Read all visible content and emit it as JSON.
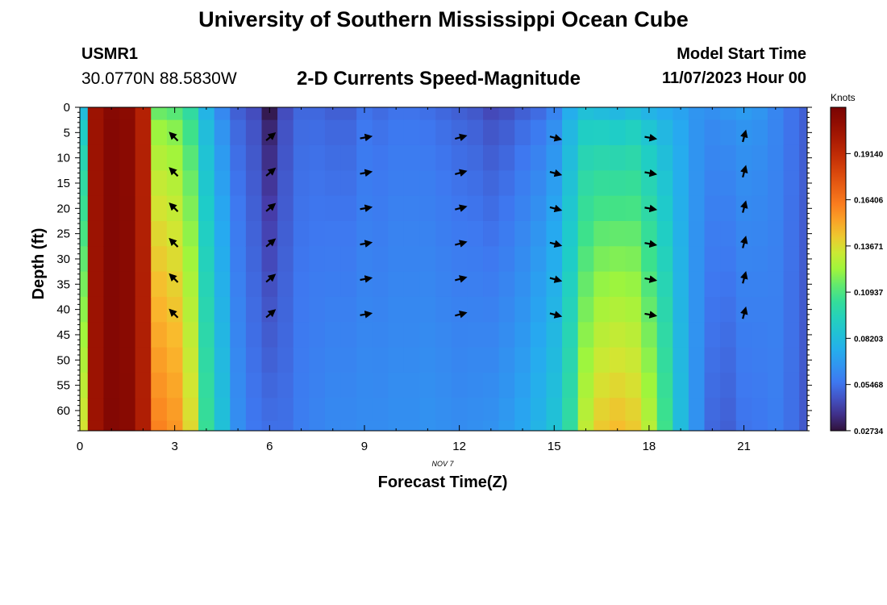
{
  "header": {
    "title": "University of Southern Mississippi Ocean Cube",
    "station_id": "USMR1",
    "coords": "30.0770N  88.5830W",
    "chart_title": "2-D Currents Speed-Magnitude",
    "start_label": "Model Start Time",
    "start_value": "11/07/2023 Hour 00"
  },
  "footer": {
    "title": "University of Southern Mississippi Ocean Cube"
  },
  "chart_data": {
    "type": "heatmap",
    "title": "2-D Currents Speed-Magnitude",
    "xlabel": "Forecast Time(Z)",
    "ylabel": "Depth (ft)",
    "x_sublabel": "NOV 7",
    "xlim": [
      0,
      23
    ],
    "ylim": [
      0,
      64
    ],
    "y_inverted": true,
    "x_ticks": [
      0,
      3,
      6,
      9,
      12,
      15,
      18,
      21
    ],
    "y_ticks": [
      0,
      5,
      10,
      15,
      20,
      25,
      30,
      35,
      40,
      45,
      50,
      55,
      60
    ],
    "colorbar": {
      "label": "Knots",
      "min": 0.0273,
      "max": 0.2188,
      "tick_values": [
        0.02734,
        0.05468,
        0.08203,
        0.10937,
        0.13671,
        0.16406,
        0.1914
      ],
      "tick_labels": [
        "0.02734",
        "0.05468",
        "0.08203",
        "0.10937",
        "0.13671",
        "0.16406",
        "0.19140"
      ]
    },
    "hours": [
      0,
      0.5,
      1,
      1.5,
      2,
      2.5,
      3,
      3.5,
      4,
      4.5,
      5,
      5.5,
      6,
      6.5,
      7,
      7.5,
      8,
      8.5,
      9,
      9.5,
      10,
      10.5,
      11,
      11.5,
      12,
      12.5,
      13,
      13.5,
      14,
      14.5,
      15,
      15.5,
      16,
      16.5,
      17,
      17.5,
      18,
      18.5,
      19,
      19.5,
      20,
      20.5,
      21,
      21.5,
      22,
      22.5,
      23
    ],
    "depths_ft": [
      0,
      5,
      10,
      15,
      20,
      25,
      30,
      35,
      40,
      45,
      50,
      55,
      60,
      64
    ],
    "speed_surface_knots": [
      0.082,
      0.205,
      0.214,
      0.212,
      0.196,
      0.115,
      0.112,
      0.102,
      0.078,
      0.062,
      0.05,
      0.045,
      0.03,
      0.045,
      0.052,
      0.052,
      0.05,
      0.05,
      0.055,
      0.053,
      0.055,
      0.055,
      0.054,
      0.052,
      0.05,
      0.048,
      0.044,
      0.046,
      0.05,
      0.053,
      0.06,
      0.075,
      0.084,
      0.082,
      0.08,
      0.083,
      0.078,
      0.074,
      0.071,
      0.066,
      0.064,
      0.066,
      0.068,
      0.066,
      0.061,
      0.055,
      0.05
    ],
    "speed_bottom_knots": [
      0.135,
      0.205,
      0.215,
      0.213,
      0.198,
      0.16,
      0.155,
      0.138,
      0.105,
      0.084,
      0.064,
      0.056,
      0.054,
      0.054,
      0.058,
      0.06,
      0.062,
      0.062,
      0.063,
      0.063,
      0.064,
      0.064,
      0.065,
      0.064,
      0.063,
      0.064,
      0.065,
      0.068,
      0.072,
      0.078,
      0.085,
      0.102,
      0.13,
      0.142,
      0.145,
      0.142,
      0.128,
      0.108,
      0.082,
      0.065,
      0.052,
      0.05,
      0.055,
      0.056,
      0.058,
      0.054,
      0.048
    ],
    "vectors": {
      "hours": [
        3,
        6,
        9,
        12,
        15,
        18,
        21
      ],
      "depths_ft": [
        6,
        13,
        20,
        27,
        34,
        41
      ],
      "direction_deg_ccw_from_east": [
        135,
        40,
        10,
        15,
        -15,
        -10,
        75
      ]
    }
  }
}
